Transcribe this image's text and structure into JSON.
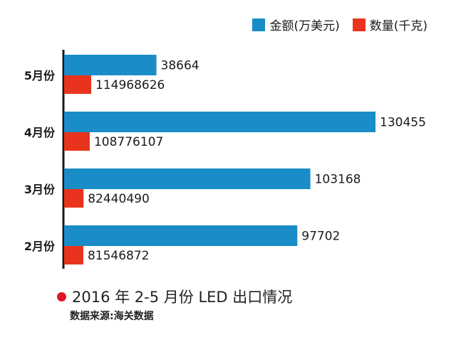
{
  "chart_data": {
    "type": "bar",
    "orientation": "horizontal",
    "categories": [
      "5月份",
      "4月份",
      "3月份",
      "2月份"
    ],
    "series": [
      {
        "name": "金额(万美元)",
        "color": "#1a8cc7",
        "values": [
          38664,
          130455,
          103168,
          97702
        ]
      },
      {
        "name": "数量(千克)",
        "color": "#e8341c",
        "values": [
          114968626,
          108776107,
          82440490,
          81546872
        ]
      }
    ],
    "value_labels": [
      [
        "38664",
        "130455",
        "103168",
        "97702"
      ],
      [
        "114968626",
        "108776107",
        "82440490",
        "81546872"
      ]
    ],
    "title": "2016 年 2-5 月份 LED 出口情况",
    "source": "数据来源:海关数据",
    "legend_position": "top-right",
    "grid": false
  },
  "caption_dot_color": "#e0142b"
}
